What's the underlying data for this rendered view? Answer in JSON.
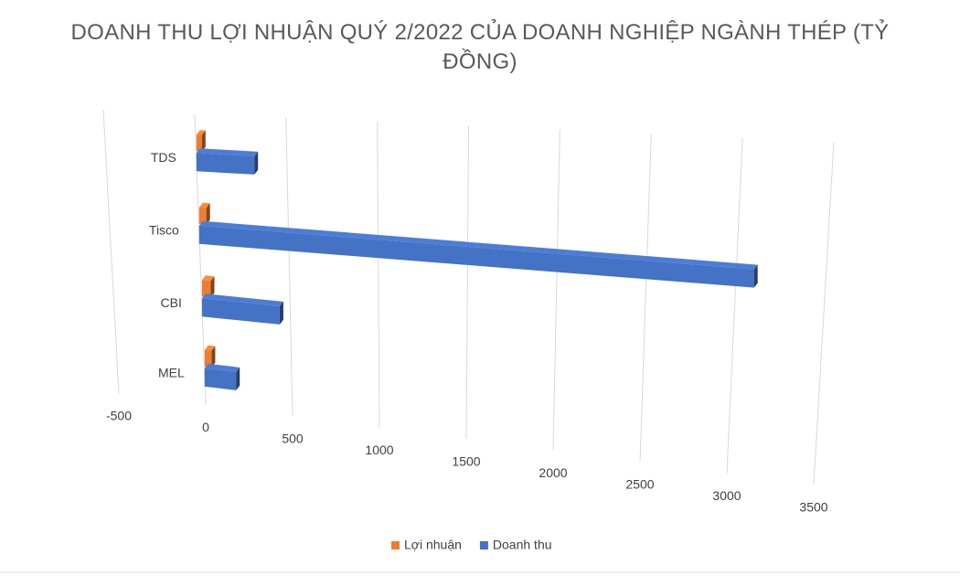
{
  "chart_data": {
    "type": "bar3d",
    "title": "DOANH THU LỢI NHUẬN QUÝ 2/2022 CỦA DOANH NGHIỆP NGÀNH THÉP (TỶ ĐỒNG)",
    "categories": [
      "TDS",
      "Tisco",
      "CBI",
      "MEL"
    ],
    "series": [
      {
        "name": "Lợi nhuận",
        "color": "#ed7d31",
        "values": [
          30,
          40,
          50,
          40
        ]
      },
      {
        "name": "Doanh thu",
        "color": "#4472c4",
        "values": [
          320,
          3100,
          440,
          180
        ]
      }
    ],
    "xlim": [
      -500,
      3500
    ],
    "xticks": [
      -500,
      0,
      500,
      1000,
      1500,
      2000,
      2500,
      3000,
      3500
    ],
    "grid": true,
    "legend": "bottom"
  }
}
